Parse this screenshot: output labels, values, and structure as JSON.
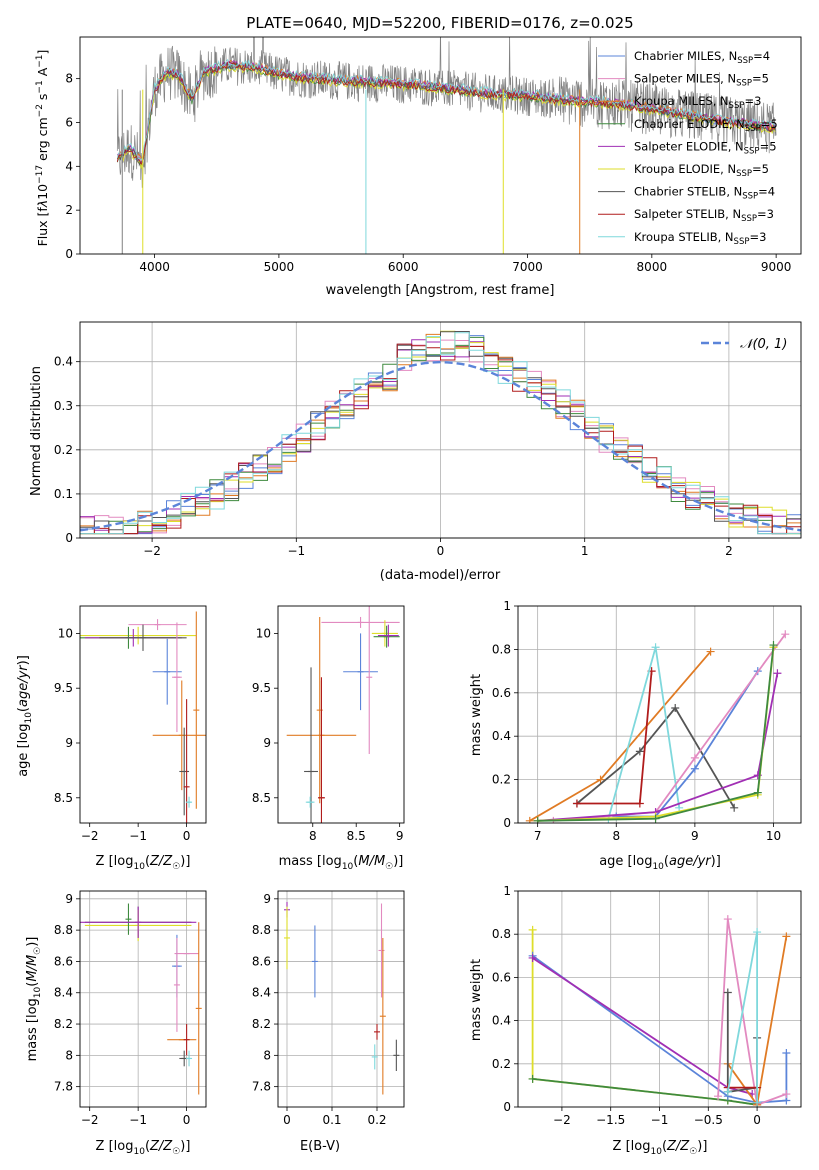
{
  "chart_data": [
    {
      "type": "line",
      "title": "PLATE=0640, MJD=52200, FIBERID=0176, z=0.025",
      "xlabel": "wavelength [Angstrom, rest frame]",
      "ylabel": "Flux [f_λ10^-17 erg cm^-2 s^-1 A^-1]",
      "xlim": [
        3400,
        9200
      ],
      "ylim": [
        0,
        9.9
      ],
      "xticks": [
        4000,
        5000,
        6000,
        7000,
        8000,
        9000
      ],
      "yticks": [
        0,
        2,
        4,
        6,
        8
      ],
      "grid": false,
      "legend_position": "top-right",
      "observed_spectrum_color": "#808080",
      "observed_spectrum_coarse": {
        "x": [
          3700,
          3800,
          3900,
          4000,
          4100,
          4200,
          4300,
          4400,
          4600,
          4800,
          5000,
          5200,
          5500,
          5800,
          6100,
          6400,
          6700,
          7000,
          7300,
          7600,
          7900,
          8200,
          8500,
          8800,
          9000
        ],
        "y": [
          4.3,
          4.8,
          4.1,
          7.5,
          8.3,
          8.1,
          7.0,
          8.3,
          8.6,
          8.5,
          8.2,
          8.0,
          7.9,
          7.8,
          7.7,
          7.5,
          7.3,
          7.2,
          7.0,
          6.9,
          6.7,
          6.4,
          6.1,
          5.9,
          5.7
        ]
      },
      "series": [
        {
          "name": "Chabrier MILES",
          "nssp": "4",
          "color": "#5b84d9",
          "offset": 0.0
        },
        {
          "name": "Salpeter MILES",
          "nssp": "5",
          "color": "#e28ac0",
          "offset": 0.05
        },
        {
          "name": "Kroupa MILES",
          "nssp": "3",
          "color": "#e07b24",
          "offset": 0.1
        },
        {
          "name": "Chabrier ELODIE",
          "nssp": "5",
          "color": "#3f8a3f",
          "offset": -0.05
        },
        {
          "name": "Salpeter ELODIE",
          "nssp": "5",
          "color": "#a12fb4",
          "offset": 0.08
        },
        {
          "name": "Kroupa ELODIE",
          "nssp": "5",
          "color": "#dede2a",
          "offset": -0.1
        },
        {
          "name": "Chabrier STELIB",
          "nssp": "4",
          "color": "#555555",
          "offset": 0.02
        },
        {
          "name": "Salpeter STELIB",
          "nssp": "3",
          "color": "#b01c1c",
          "offset": -0.02
        },
        {
          "name": "Kroupa STELIB",
          "nssp": "3",
          "color": "#7fd8dc",
          "offset": 0.15
        }
      ]
    },
    {
      "type": "histogram",
      "xlabel": "(data-model)/error",
      "ylabel": "Normed distribution",
      "xlim": [
        -2.5,
        2.5
      ],
      "ylim": [
        0,
        0.49
      ],
      "xticks": [
        -2,
        -1,
        0,
        1,
        2
      ],
      "yticks": [
        0.0,
        0.1,
        0.2,
        0.3,
        0.4
      ],
      "grid": true,
      "legend_position": "top-right",
      "reference_curve": {
        "label": "𝒩(0, 1)",
        "type": "gaussian",
        "mean": 0,
        "sigma": 1,
        "color": "#5b84d9"
      },
      "bin_width": 0.1,
      "series_colors": [
        "#5b84d9",
        "#e28ac0",
        "#e07b24",
        "#3f8a3f",
        "#a12fb4",
        "#dede2a",
        "#555555",
        "#b01c1c",
        "#7fd8dc"
      ]
    },
    {
      "type": "scatter",
      "subtype": "errorbar",
      "xlabel": "Z [log10(Z/Z⊙)]",
      "ylabel": "age  [log10(age/yr)]",
      "xlim": [
        -2.2,
        0.4
      ],
      "ylim": [
        8.27,
        10.25
      ],
      "xticks": [
        -2,
        -1,
        0
      ],
      "yticks": [
        8.5,
        9.0,
        9.5,
        10.0
      ],
      "points": [
        {
          "x": -0.6,
          "y": 10.08,
          "xerr": 0.6,
          "yerr": 0.05,
          "color": "#e28ac0"
        },
        {
          "x": -1.0,
          "y": 9.98,
          "xerr": 1.2,
          "yerr": 0.08,
          "color": "#dede2a"
        },
        {
          "x": -1.2,
          "y": 9.96,
          "xerr": 1.0,
          "yerr": 0.1,
          "color": "#3f8a3f"
        },
        {
          "x": -1.1,
          "y": 9.96,
          "xerr": 1.0,
          "yerr": 0.08,
          "color": "#a12fb4"
        },
        {
          "x": -0.9,
          "y": 9.96,
          "xerr": 0.9,
          "yerr": 0.12,
          "color": "#555555"
        },
        {
          "x": -0.4,
          "y": 9.65,
          "xerr": 0.3,
          "yerr": 0.3,
          "color": "#5b84d9"
        },
        {
          "x": -0.2,
          "y": 9.6,
          "xerr": 0.1,
          "yerr": 0.5,
          "color": "#e28ac0"
        },
        {
          "x": -0.1,
          "y": 9.07,
          "xerr": 0.6,
          "yerr": 0.5,
          "color": "#e07b24"
        },
        {
          "x": -0.05,
          "y": 8.74,
          "xerr": 0.1,
          "yerr": 0.4,
          "color": "#555555"
        },
        {
          "x": 0.0,
          "y": 8.6,
          "xerr": 0.02,
          "yerr": 0.8,
          "color": "#b01c1c"
        },
        {
          "x": 0.2,
          "y": 9.3,
          "xerr": 0.0,
          "yerr": 0.9,
          "color": "#e07b24"
        },
        {
          "x": 0.05,
          "y": 8.46,
          "xerr": 0.05,
          "yerr": 0.05,
          "color": "#7fd8dc"
        }
      ]
    },
    {
      "type": "scatter",
      "subtype": "errorbar",
      "xlabel": "mass [log10(M/M⊙)]",
      "xlim": [
        7.6,
        9.05
      ],
      "ylim": [
        8.27,
        10.25
      ],
      "xticks": [
        8.0,
        8.5,
        9.0
      ],
      "yticks": [
        8.5,
        9.0,
        9.5,
        10.0
      ],
      "points": [
        {
          "x": 8.55,
          "y": 10.1,
          "xerr": 0.45,
          "yerr": 0.05,
          "color": "#e28ac0"
        },
        {
          "x": 8.83,
          "y": 10.0,
          "xerr": 0.15,
          "yerr": 0.12,
          "color": "#dede2a"
        },
        {
          "x": 8.85,
          "y": 9.97,
          "xerr": 0.15,
          "yerr": 0.1,
          "color": "#3f8a3f"
        },
        {
          "x": 8.87,
          "y": 9.98,
          "xerr": 0.12,
          "yerr": 0.1,
          "color": "#a12fb4"
        },
        {
          "x": 8.55,
          "y": 9.65,
          "xerr": 0.2,
          "yerr": 0.35,
          "color": "#5b84d9"
        },
        {
          "x": 8.65,
          "y": 9.6,
          "xerr": 0.0,
          "yerr": 0.7,
          "color": "#e28ac0"
        },
        {
          "x": 8.1,
          "y": 9.07,
          "xerr": 0.4,
          "yerr": 0.5,
          "color": "#e07b24"
        },
        {
          "x": 8.08,
          "y": 9.3,
          "xerr": 0.0,
          "yerr": 0.85,
          "color": "#e07b24"
        },
        {
          "x": 7.98,
          "y": 8.74,
          "xerr": 0.08,
          "yerr": 0.95,
          "color": "#555555"
        },
        {
          "x": 8.1,
          "y": 8.5,
          "xerr": 0.04,
          "yerr": 1.1,
          "color": "#b01c1c"
        },
        {
          "x": 7.97,
          "y": 8.46,
          "xerr": 0.05,
          "yerr": 0.05,
          "color": "#7fd8dc"
        }
      ]
    },
    {
      "type": "line",
      "xlabel": "age  [log10(age/yr)]",
      "ylabel": "mass weight",
      "xlim": [
        6.75,
        10.35
      ],
      "ylim": [
        0,
        1.0
      ],
      "xticks": [
        7,
        8,
        9,
        10
      ],
      "yticks": [
        0.0,
        0.2,
        0.4,
        0.6,
        0.8,
        1.0
      ],
      "grid": true,
      "series": [
        {
          "color": "#e07b24",
          "x": [
            6.9,
            7.8,
            9.2
          ],
          "y": [
            0.01,
            0.2,
            0.79
          ]
        },
        {
          "color": "#555555",
          "x": [
            7.5,
            8.3,
            8.75,
            9.5
          ],
          "y": [
            0.09,
            0.33,
            0.53,
            0.07
          ]
        },
        {
          "color": "#b01c1c",
          "x": [
            7.5,
            8.3,
            8.45
          ],
          "y": [
            0.09,
            0.09,
            0.7
          ]
        },
        {
          "color": "#7fd8dc",
          "x": [
            7.9,
            8.5,
            8.8
          ],
          "y": [
            0.02,
            0.81,
            0.07
          ]
        },
        {
          "color": "#5b84d9",
          "x": [
            8.0,
            8.5,
            9.0,
            9.8
          ],
          "y": [
            0.03,
            0.03,
            0.25,
            0.7
          ]
        },
        {
          "color": "#e28ac0",
          "x": [
            7.2,
            8.5,
            9.0,
            10.15
          ],
          "y": [
            0.01,
            0.05,
            0.3,
            0.87
          ]
        },
        {
          "color": "#a12fb4",
          "x": [
            7.0,
            8.5,
            9.8,
            10.05
          ],
          "y": [
            0.01,
            0.05,
            0.22,
            0.69
          ]
        },
        {
          "color": "#dede2a",
          "x": [
            7.0,
            8.5,
            9.8,
            10.0
          ],
          "y": [
            0.01,
            0.03,
            0.13,
            0.81
          ]
        },
        {
          "color": "#3f8a3f",
          "x": [
            7.0,
            8.5,
            9.8,
            10.0
          ],
          "y": [
            0.01,
            0.02,
            0.14,
            0.82
          ]
        }
      ]
    },
    {
      "type": "scatter",
      "subtype": "errorbar",
      "xlabel": "Z [log10(Z/Z⊙)]",
      "ylabel": "mass [log10(M/M⊙)]",
      "xlim": [
        -2.2,
        0.4
      ],
      "ylim": [
        7.67,
        9.05
      ],
      "xticks": [
        -2,
        -1,
        0
      ],
      "yticks": [
        7.8,
        8.0,
        8.2,
        8.4,
        8.6,
        8.8,
        9.0
      ],
      "points": [
        {
          "x": -1.0,
          "y": 8.85,
          "xerr": 1.1,
          "yerr": 0.1,
          "color": "#555555"
        },
        {
          "x": -1.0,
          "y": 8.83,
          "xerr": 1.1,
          "yerr": 0.1,
          "color": "#dede2a"
        },
        {
          "x": -1.2,
          "y": 8.87,
          "xerr": 0.0,
          "yerr": 0.1,
          "color": "#3f8a3f"
        },
        {
          "x": -1.0,
          "y": 8.85,
          "xerr": 1.2,
          "yerr": 0.1,
          "color": "#a12fb4"
        },
        {
          "x": 0.0,
          "y": 8.65,
          "xerr": 0.25,
          "yerr": 0.0,
          "color": "#e28ac0"
        },
        {
          "x": -0.2,
          "y": 8.57,
          "xerr": 0.1,
          "yerr": 0.2,
          "color": "#5b84d9"
        },
        {
          "x": -0.2,
          "y": 8.45,
          "xerr": 0.0,
          "yerr": 0.3,
          "color": "#e28ac0"
        },
        {
          "x": -0.1,
          "y": 8.1,
          "xerr": 0.3,
          "yerr": 0.0,
          "color": "#e07b24"
        },
        {
          "x": 0.0,
          "y": 8.1,
          "xerr": 0.0,
          "yerr": 0.1,
          "color": "#b01c1c"
        },
        {
          "x": -0.05,
          "y": 7.98,
          "xerr": 0.1,
          "yerr": 0.05,
          "color": "#555555"
        },
        {
          "x": 0.05,
          "y": 7.98,
          "xerr": 0.05,
          "yerr": 0.05,
          "color": "#7fd8dc"
        },
        {
          "x": 0.25,
          "y": 8.3,
          "xerr": 0.0,
          "yerr": 0.55,
          "color": "#e07b24"
        }
      ]
    },
    {
      "type": "scatter",
      "subtype": "errorbar",
      "xlabel": "E(B-V)",
      "xlim": [
        -0.02,
        0.26
      ],
      "ylim": [
        7.67,
        9.05
      ],
      "xticks": [
        0.0,
        0.1,
        0.2
      ],
      "yticks": [
        7.8,
        8.0,
        8.2,
        8.4,
        8.6,
        8.8,
        9.0
      ],
      "points": [
        {
          "x": 0.0,
          "y": 8.93,
          "xerr": 0,
          "yerr": 0.05,
          "color": "#a12fb4"
        },
        {
          "x": 0.0,
          "y": 8.75,
          "xerr": 0,
          "yerr": 0.2,
          "color": "#dede2a"
        },
        {
          "x": 0.062,
          "y": 8.6,
          "xerr": 0,
          "yerr": 0.23,
          "color": "#5b84d9"
        },
        {
          "x": 0.21,
          "y": 8.67,
          "xerr": 0,
          "yerr": 0.3,
          "color": "#e28ac0"
        },
        {
          "x": 0.213,
          "y": 8.25,
          "xerr": 0,
          "yerr": 0.5,
          "color": "#e07b24"
        },
        {
          "x": 0.2,
          "y": 8.15,
          "xerr": 0,
          "yerr": 0.05,
          "color": "#b01c1c"
        },
        {
          "x": 0.195,
          "y": 7.99,
          "xerr": 0,
          "yerr": 0.08,
          "color": "#7fd8dc"
        },
        {
          "x": 0.243,
          "y": 8.0,
          "xerr": 0,
          "yerr": 0.1,
          "color": "#555555"
        }
      ]
    },
    {
      "type": "line",
      "xlabel": "Z [log10(Z/Z⊙)]",
      "ylabel": "mass weight",
      "xlim": [
        -2.45,
        0.45
      ],
      "ylim": [
        0,
        1.0
      ],
      "xticks": [
        -2.0,
        -1.5,
        -1.0,
        -0.5,
        0.0
      ],
      "yticks": [
        0.0,
        0.2,
        0.4,
        0.6,
        0.8,
        1.0
      ],
      "grid": true,
      "series": [
        {
          "color": "#dede2a",
          "x": [
            -2.3,
            -2.3,
            -0.3,
            0.0
          ],
          "y": [
            0.82,
            0.13,
            0.03,
            0.01
          ]
        },
        {
          "color": "#3f8a3f",
          "x": [
            -2.3,
            -0.3,
            0.0
          ],
          "y": [
            0.13,
            0.03,
            0.01
          ]
        },
        {
          "color": "#5b84d9",
          "x": [
            -2.3,
            -0.3,
            0.0,
            0.3,
            0.3
          ],
          "y": [
            0.7,
            0.05,
            0.02,
            0.03,
            0.25
          ]
        },
        {
          "color": "#a12fb4",
          "x": [
            -2.3,
            -0.3,
            -0.05
          ],
          "y": [
            0.69,
            0.09,
            0.06
          ]
        },
        {
          "color": "#e28ac0",
          "x": [
            -0.4,
            -0.3,
            0.0,
            0.3
          ],
          "y": [
            0.05,
            0.87,
            0.01,
            0.06
          ]
        },
        {
          "color": "#e07b24",
          "x": [
            -0.3,
            0.0,
            0.3
          ],
          "y": [
            0.2,
            0.01,
            0.79
          ]
        },
        {
          "color": "#555555",
          "x": [
            -0.3,
            -0.3,
            0.0,
            0.0
          ],
          "y": [
            0.53,
            0.07,
            0.09,
            0.32
          ]
        },
        {
          "color": "#b01c1c",
          "x": [
            -0.3,
            0.0,
            0.0
          ],
          "y": [
            0.09,
            0.09,
            0.02
          ]
        },
        {
          "color": "#7fd8dc",
          "x": [
            -0.3,
            0.0,
            0.0
          ],
          "y": [
            0.07,
            0.81,
            0.02
          ]
        }
      ]
    }
  ]
}
